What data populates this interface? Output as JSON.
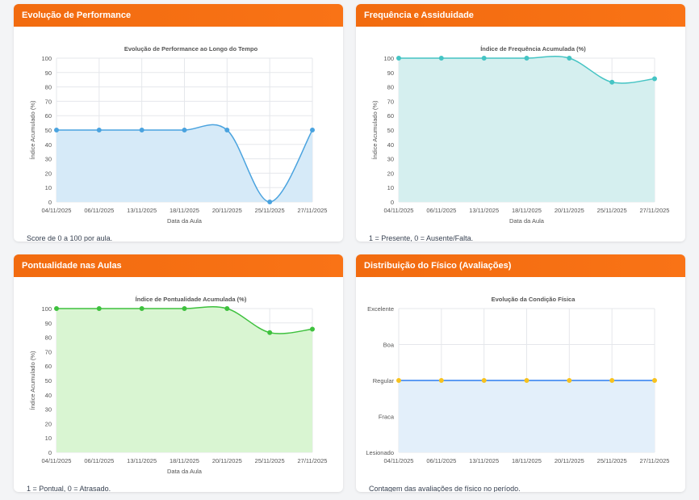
{
  "cards": [
    {
      "header": "Evolução de Performance",
      "note": "Score de 0 a 100 por aula."
    },
    {
      "header": "Frequência e Assiduidade",
      "note": "1 = Presente, 0 = Ausente/Falta."
    },
    {
      "header": "Pontualidade nas Aulas",
      "note": "1 = Pontual, 0 = Atrasado."
    },
    {
      "header": "Distribuição do Físico (Avaliações)",
      "note": "Contagem das avaliações de físico no período."
    }
  ],
  "chart_data": [
    {
      "type": "area",
      "title": "Evolução de Performance ao Longo do Tempo",
      "xlabel": "Data da Aula",
      "ylabel": "Índice Acumulado (%)",
      "categories": [
        "04/11/2025",
        "06/11/2025",
        "13/11/2025",
        "18/11/2025",
        "20/11/2025",
        "25/11/2025",
        "27/11/2025"
      ],
      "values": [
        50,
        50,
        50,
        50,
        50,
        0,
        50
      ],
      "ylim": [
        0,
        100
      ],
      "yticks": [
        0,
        10,
        20,
        30,
        40,
        50,
        60,
        70,
        80,
        90,
        100
      ],
      "grid": true,
      "line_color": "#4aa3df",
      "fill_color": "#d6eaf8"
    },
    {
      "type": "area",
      "title": "Índice de Frequência Acumulada (%)",
      "xlabel": "Data da Aula",
      "ylabel": "Índice Acumulado (%)",
      "categories": [
        "04/11/2025",
        "06/11/2025",
        "13/11/2025",
        "18/11/2025",
        "20/11/2025",
        "25/11/2025",
        "27/11/2025"
      ],
      "values": [
        100,
        100,
        100,
        100,
        100,
        83.3,
        85.7
      ],
      "ylim": [
        0,
        100
      ],
      "yticks": [
        0,
        10,
        20,
        30,
        40,
        50,
        60,
        70,
        80,
        90,
        100
      ],
      "grid": true,
      "line_color": "#45c4c4",
      "fill_color": "#d5efef"
    },
    {
      "type": "area",
      "title": "Índice de Pontualidade Acumulada (%)",
      "xlabel": "Data da Aula",
      "ylabel": "Índice Acumulado (%)",
      "categories": [
        "04/11/2025",
        "06/11/2025",
        "13/11/2025",
        "18/11/2025",
        "20/11/2025",
        "25/11/2025",
        "27/11/2025"
      ],
      "values": [
        100,
        100,
        100,
        100,
        100,
        83.3,
        85.7
      ],
      "ylim": [
        0,
        100
      ],
      "yticks": [
        0,
        10,
        20,
        30,
        40,
        50,
        60,
        70,
        80,
        90,
        100
      ],
      "grid": true,
      "line_color": "#3ec13e",
      "fill_color": "#d9f5d2"
    },
    {
      "type": "area",
      "title": "Evolução da Condição Física",
      "xlabel": "",
      "ylabel": "",
      "categories": [
        "04/11/2025",
        "06/11/2025",
        "13/11/2025",
        "18/11/2025",
        "20/11/2025",
        "25/11/2025",
        "27/11/2025"
      ],
      "values": [
        2,
        2,
        2,
        2,
        2,
        2,
        2
      ],
      "ylim": [
        0,
        4
      ],
      "yticks": [
        0,
        1,
        2,
        3,
        4
      ],
      "ytick_labels": [
        "Lesionado",
        "Fraca",
        "Regular",
        "Boa",
        "Excelente"
      ],
      "grid": true,
      "line_color": "#2d7ff0",
      "point_color": "#f7c21e",
      "fill_color": "#e3effa"
    }
  ]
}
